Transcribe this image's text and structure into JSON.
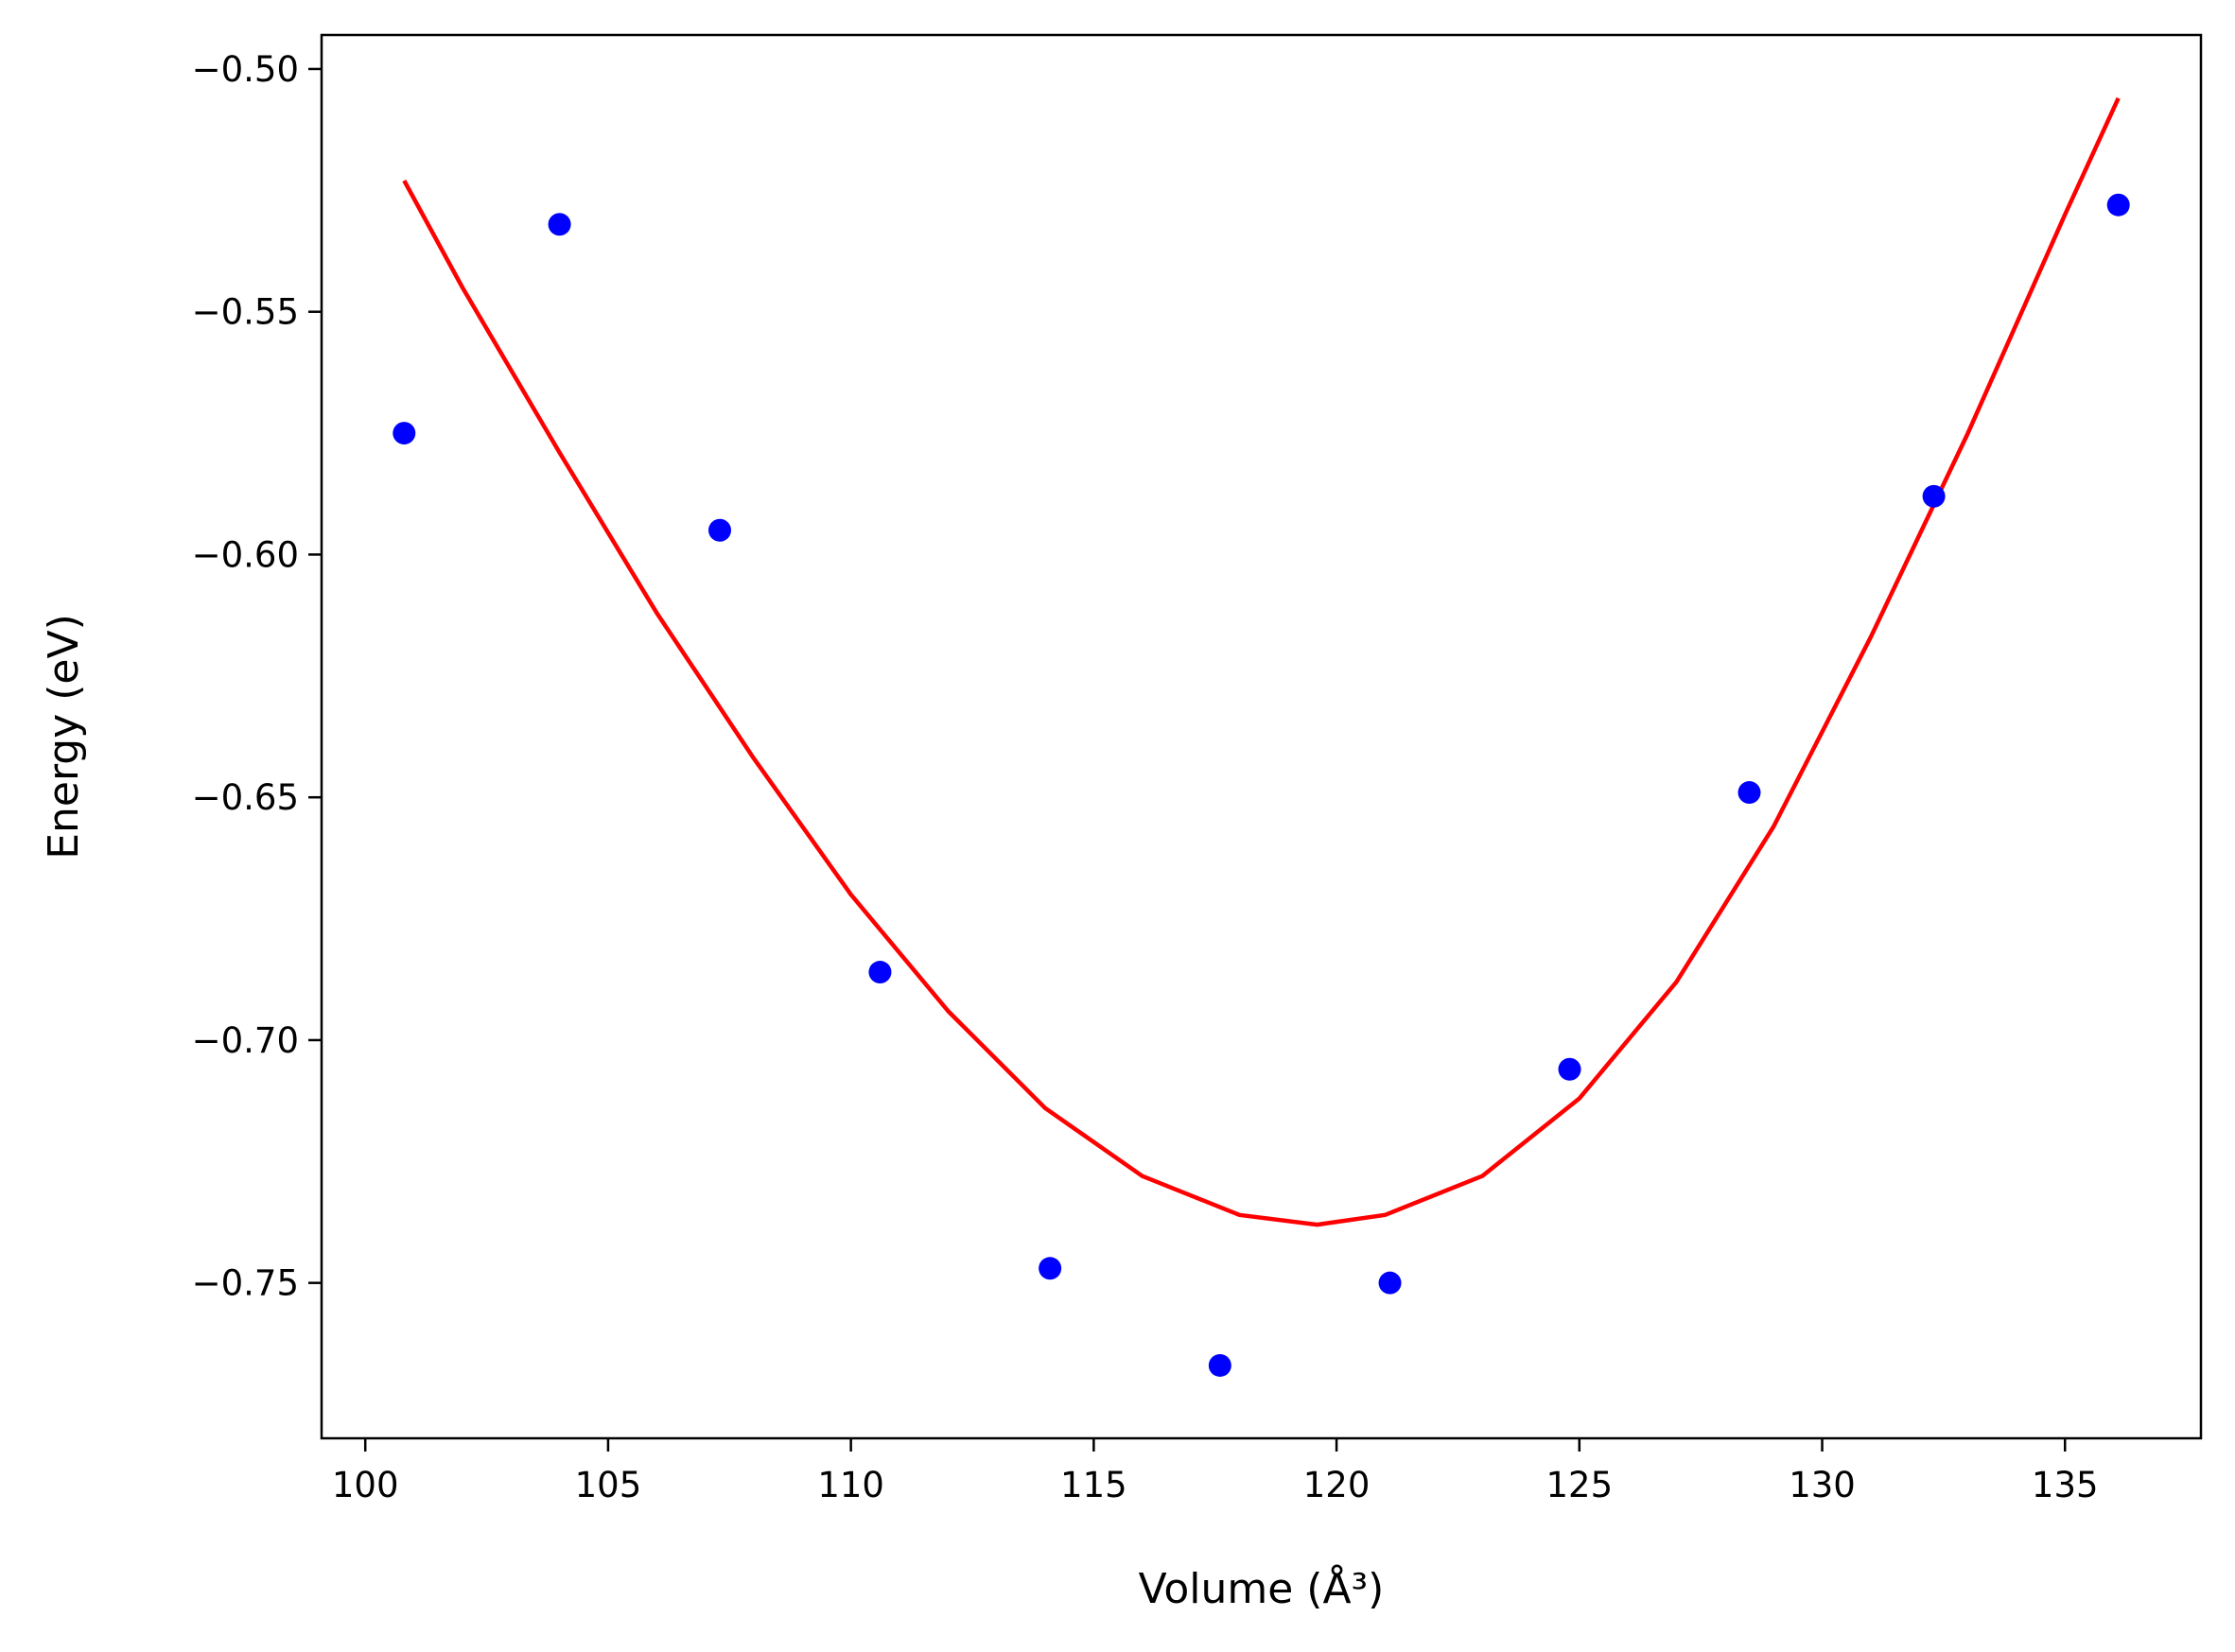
{
  "chart_data": {
    "type": "scatter",
    "title": "",
    "xlabel": "Volume (Å³)",
    "ylabel": "Energy (eV)",
    "xlim": [
      99.1,
      137.8
    ],
    "ylim": [
      -0.782,
      -0.493
    ],
    "xticks": [
      100,
      105,
      110,
      115,
      120,
      125,
      130,
      135
    ],
    "yticks": [
      -0.5,
      -0.55,
      -0.6,
      -0.65,
      -0.7,
      -0.75
    ],
    "xtick_labels": [
      "100",
      "105",
      "110",
      "115",
      "120",
      "125",
      "130",
      "135"
    ],
    "ytick_labels": [
      "−0.50",
      "−0.55",
      "−0.60",
      "−0.65",
      "−0.70",
      "−0.75"
    ],
    "grid": false,
    "series": [
      {
        "kind": "scatter",
        "color": "#0000ff",
        "x": [
          100.8,
          104.0,
          107.3,
          110.6,
          114.1,
          117.6,
          121.1,
          124.8,
          128.5,
          132.3,
          136.1
        ],
        "y": [
          -0.575,
          -0.532,
          -0.595,
          -0.686,
          -0.747,
          -0.767,
          -0.75,
          -0.706,
          -0.649,
          -0.588,
          -0.528
        ]
      },
      {
        "kind": "fit-line",
        "color": "#ff0000",
        "x": [
          100.8,
          102.0,
          104.0,
          106.0,
          108.0,
          110.0,
          112.0,
          114.0,
          116.0,
          118.0,
          119.6,
          121.0,
          123.0,
          125.0,
          127.0,
          129.0,
          131.0,
          133.0,
          135.0,
          136.1
        ],
        "y": [
          -0.523,
          -0.545,
          -0.579,
          -0.612,
          -0.642,
          -0.67,
          -0.694,
          -0.714,
          -0.728,
          -0.736,
          -0.738,
          -0.736,
          -0.728,
          -0.712,
          -0.688,
          -0.656,
          -0.617,
          -0.575,
          -0.53,
          -0.506
        ]
      }
    ]
  }
}
